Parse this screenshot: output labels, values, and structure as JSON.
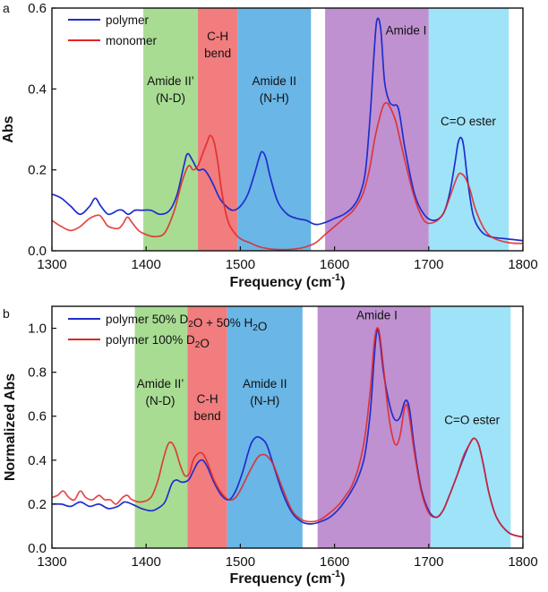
{
  "chart_data": [
    {
      "id": "a",
      "type": "line",
      "panel_label": "a",
      "xlabel": "Frequency (cm-1)",
      "ylabel": "Abs",
      "xlim": [
        1300,
        1800
      ],
      "ylim": [
        0,
        0.6
      ],
      "xticks": [
        1300,
        1400,
        1500,
        1600,
        1700,
        1800
      ],
      "xtick_labels": [
        "1300",
        "1400",
        "1500",
        "1600",
        "1700",
        "1800"
      ],
      "yticks": [
        0.0,
        0.2,
        0.4,
        0.6
      ],
      "ytick_labels": [
        "0.0",
        "0.2",
        "0.4",
        "0.6"
      ],
      "legend": {
        "placement": "top-left",
        "entries": [
          "polymer",
          "monomer"
        ]
      },
      "regions": [
        {
          "x0": 1397,
          "x1": 1455,
          "color": "#9fd887",
          "lines": [
            "Amide II’",
            "(N-D)"
          ],
          "label_x": 1426,
          "label_y": 0.41
        },
        {
          "x0": 1455,
          "x1": 1497,
          "color": "#f06f70",
          "lines": [
            "C-H",
            "bend"
          ],
          "label_x": 1476,
          "label_y": 0.52
        },
        {
          "x0": 1497,
          "x1": 1575,
          "color": "#5aaee3",
          "lines": [
            "Amide II",
            "(N-H)"
          ],
          "label_x": 1536,
          "label_y": 0.41
        },
        {
          "x0": 1590,
          "x1": 1700,
          "color": "#b885cc",
          "lines": [
            "Amide I"
          ],
          "label_x": 1676,
          "label_y": 0.535
        },
        {
          "x0": 1700,
          "x1": 1785,
          "color": "#95e0f7",
          "lines": [
            "C=O ester"
          ],
          "label_x": 1742,
          "label_y": 0.31
        }
      ],
      "series": [
        {
          "name": "polymer",
          "color": "#1f2ecc",
          "x": [
            1300,
            1310,
            1320,
            1330,
            1340,
            1346,
            1352,
            1360,
            1370,
            1375,
            1381,
            1388,
            1395,
            1405,
            1415,
            1425,
            1433,
            1440,
            1444,
            1450,
            1455,
            1462,
            1470,
            1478,
            1485,
            1492,
            1500,
            1508,
            1515,
            1520,
            1523,
            1527,
            1532,
            1540,
            1550,
            1560,
            1570,
            1580,
            1590,
            1600,
            1610,
            1620,
            1627,
            1633,
            1638,
            1642,
            1645,
            1649,
            1653,
            1658,
            1662,
            1668,
            1675,
            1685,
            1695,
            1705,
            1715,
            1722,
            1728,
            1731,
            1734,
            1737,
            1741,
            1747,
            1755,
            1765,
            1780,
            1800
          ],
          "y": [
            0.14,
            0.13,
            0.11,
            0.09,
            0.11,
            0.13,
            0.11,
            0.09,
            0.1,
            0.1,
            0.09,
            0.1,
            0.1,
            0.1,
            0.09,
            0.1,
            0.14,
            0.21,
            0.24,
            0.22,
            0.2,
            0.2,
            0.17,
            0.13,
            0.11,
            0.1,
            0.11,
            0.14,
            0.19,
            0.23,
            0.245,
            0.23,
            0.18,
            0.12,
            0.09,
            0.08,
            0.075,
            0.065,
            0.07,
            0.08,
            0.09,
            0.11,
            0.14,
            0.2,
            0.34,
            0.49,
            0.57,
            0.55,
            0.42,
            0.37,
            0.36,
            0.35,
            0.25,
            0.14,
            0.09,
            0.075,
            0.09,
            0.14,
            0.22,
            0.265,
            0.28,
            0.26,
            0.18,
            0.09,
            0.05,
            0.035,
            0.03,
            0.025
          ]
        },
        {
          "name": "monomer",
          "color": "#e32424",
          "x": [
            1300,
            1310,
            1320,
            1330,
            1340,
            1350,
            1355,
            1360,
            1370,
            1375,
            1380,
            1385,
            1392,
            1400,
            1410,
            1420,
            1430,
            1438,
            1445,
            1450,
            1455,
            1460,
            1465,
            1468,
            1472,
            1476,
            1480,
            1486,
            1492,
            1500,
            1510,
            1520,
            1530,
            1540,
            1550,
            1560,
            1570,
            1580,
            1590,
            1600,
            1610,
            1620,
            1630,
            1637,
            1643,
            1648,
            1652,
            1656,
            1660,
            1665,
            1670,
            1675,
            1685,
            1695,
            1705,
            1715,
            1722,
            1728,
            1732,
            1735,
            1739,
            1744,
            1750,
            1760,
            1770,
            1785,
            1800
          ],
          "y": [
            0.075,
            0.06,
            0.05,
            0.06,
            0.08,
            0.088,
            0.075,
            0.06,
            0.055,
            0.065,
            0.083,
            0.07,
            0.05,
            0.04,
            0.035,
            0.045,
            0.1,
            0.17,
            0.21,
            0.2,
            0.21,
            0.24,
            0.27,
            0.285,
            0.27,
            0.22,
            0.15,
            0.08,
            0.05,
            0.03,
            0.02,
            0.01,
            0.005,
            0.003,
            0.003,
            0.005,
            0.01,
            0.02,
            0.04,
            0.06,
            0.08,
            0.1,
            0.14,
            0.2,
            0.28,
            0.33,
            0.36,
            0.365,
            0.35,
            0.32,
            0.27,
            0.22,
            0.13,
            0.075,
            0.07,
            0.09,
            0.13,
            0.17,
            0.19,
            0.19,
            0.18,
            0.15,
            0.1,
            0.05,
            0.03,
            0.02,
            0.018
          ]
        }
      ]
    },
    {
      "id": "b",
      "type": "line",
      "panel_label": "b",
      "xlabel": "Frequency (cm-1)",
      "ylabel": "Normalized Abs",
      "xlim": [
        1300,
        1800
      ],
      "ylim": [
        0,
        1.1
      ],
      "xticks": [
        1300,
        1400,
        1500,
        1600,
        1700,
        1800
      ],
      "xtick_labels": [
        "1300",
        "1400",
        "1500",
        "1600",
        "1700",
        "1800"
      ],
      "yticks": [
        0.0,
        0.2,
        0.4,
        0.6,
        0.8,
        1.0
      ],
      "ytick_labels": [
        "0.0",
        "0.2",
        "0.4",
        "0.6",
        "0.8",
        "1.0"
      ],
      "legend": {
        "placement": "top-left",
        "entries": [
          {
            "parts": [
              "polymer 50% D",
              "2",
              "O + 50% H",
              "2",
              "O"
            ]
          },
          {
            "parts": [
              "polymer 100% D",
              "2",
              "O"
            ]
          }
        ]
      },
      "regions": [
        {
          "x0": 1388,
          "x1": 1444,
          "color": "#9fd887",
          "lines": [
            "Amide II’",
            "(N-D)"
          ],
          "label_x": 1415,
          "label_y": 0.73
        },
        {
          "x0": 1444,
          "x1": 1486,
          "color": "#f06f70",
          "lines": [
            "C-H",
            "bend"
          ],
          "label_x": 1465,
          "label_y": 0.66
        },
        {
          "x0": 1486,
          "x1": 1566,
          "color": "#5aaee3",
          "lines": [
            "Amide II",
            "(N-H)"
          ],
          "label_x": 1526,
          "label_y": 0.73
        },
        {
          "x0": 1582,
          "x1": 1702,
          "color": "#b885cc",
          "lines": [
            "Amide I"
          ],
          "label_x": 1645,
          "label_y": 1.04
        },
        {
          "x0": 1702,
          "x1": 1787,
          "color": "#95e0f7",
          "lines": [
            "C=O ester"
          ],
          "label_x": 1746,
          "label_y": 0.565
        }
      ],
      "series": [
        {
          "name": "polymer 50% D2O + 50% H2O",
          "color": "#1f2ecc",
          "x": [
            1300,
            1310,
            1320,
            1330,
            1340,
            1350,
            1360,
            1370,
            1377,
            1385,
            1395,
            1405,
            1412,
            1420,
            1427,
            1432,
            1438,
            1445,
            1450,
            1455,
            1460,
            1465,
            1472,
            1480,
            1488,
            1495,
            1502,
            1508,
            1512,
            1517,
            1522,
            1528,
            1535,
            1545,
            1555,
            1565,
            1575,
            1585,
            1595,
            1605,
            1612,
            1618,
            1625,
            1632,
            1638,
            1642,
            1645,
            1648,
            1652,
            1657,
            1662,
            1666,
            1670,
            1674,
            1677,
            1680,
            1685,
            1692,
            1700,
            1708,
            1715,
            1722,
            1730,
            1737,
            1743,
            1748,
            1753,
            1758,
            1764,
            1772,
            1785,
            1800
          ],
          "y": [
            0.2,
            0.2,
            0.19,
            0.21,
            0.19,
            0.2,
            0.18,
            0.19,
            0.21,
            0.2,
            0.18,
            0.17,
            0.18,
            0.21,
            0.29,
            0.31,
            0.3,
            0.31,
            0.35,
            0.39,
            0.4,
            0.37,
            0.3,
            0.24,
            0.22,
            0.26,
            0.34,
            0.43,
            0.48,
            0.505,
            0.5,
            0.47,
            0.38,
            0.25,
            0.16,
            0.12,
            0.11,
            0.12,
            0.14,
            0.18,
            0.22,
            0.26,
            0.32,
            0.42,
            0.62,
            0.86,
            0.99,
            0.95,
            0.8,
            0.68,
            0.6,
            0.58,
            0.6,
            0.66,
            0.67,
            0.62,
            0.45,
            0.27,
            0.17,
            0.14,
            0.17,
            0.24,
            0.33,
            0.41,
            0.47,
            0.5,
            0.47,
            0.38,
            0.25,
            0.14,
            0.07,
            0.05
          ]
        },
        {
          "name": "polymer 100% D2O",
          "color": "#e32424",
          "x": [
            1300,
            1306,
            1312,
            1318,
            1324,
            1330,
            1336,
            1343,
            1350,
            1356,
            1362,
            1368,
            1375,
            1380,
            1385,
            1395,
            1405,
            1412,
            1418,
            1423,
            1427,
            1431,
            1436,
            1441,
            1446,
            1450,
            1455,
            1460,
            1465,
            1472,
            1480,
            1488,
            1495,
            1502,
            1510,
            1518,
            1523,
            1528,
            1535,
            1545,
            1555,
            1565,
            1575,
            1585,
            1595,
            1605,
            1612,
            1618,
            1625,
            1632,
            1638,
            1642,
            1645,
            1648,
            1652,
            1657,
            1662,
            1666,
            1670,
            1674,
            1677,
            1680,
            1685,
            1692,
            1700,
            1708,
            1715,
            1722,
            1730,
            1737,
            1743,
            1748,
            1753,
            1758,
            1764,
            1772,
            1785,
            1800
          ],
          "y": [
            0.23,
            0.24,
            0.26,
            0.23,
            0.22,
            0.26,
            0.23,
            0.22,
            0.24,
            0.22,
            0.22,
            0.2,
            0.23,
            0.24,
            0.22,
            0.21,
            0.23,
            0.3,
            0.4,
            0.47,
            0.48,
            0.45,
            0.38,
            0.33,
            0.34,
            0.4,
            0.43,
            0.43,
            0.39,
            0.31,
            0.25,
            0.22,
            0.23,
            0.28,
            0.35,
            0.41,
            0.425,
            0.42,
            0.38,
            0.27,
            0.17,
            0.13,
            0.12,
            0.13,
            0.16,
            0.2,
            0.24,
            0.28,
            0.36,
            0.5,
            0.72,
            0.93,
            1.0,
            0.97,
            0.82,
            0.62,
            0.5,
            0.47,
            0.52,
            0.63,
            0.65,
            0.58,
            0.43,
            0.26,
            0.16,
            0.14,
            0.17,
            0.24,
            0.33,
            0.42,
            0.47,
            0.5,
            0.47,
            0.38,
            0.25,
            0.14,
            0.07,
            0.05
          ]
        }
      ]
    }
  ]
}
